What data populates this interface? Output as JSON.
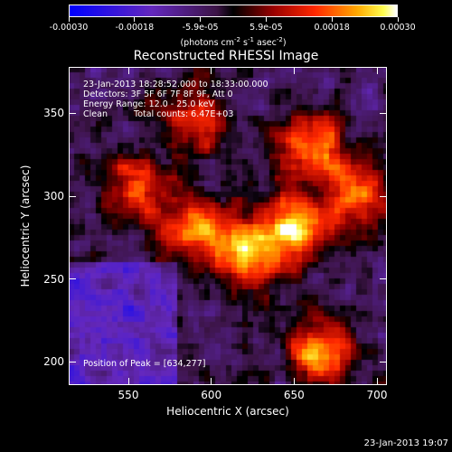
{
  "chart_data": {
    "type": "heatmap",
    "title": "Reconstructed RHESSI Image",
    "xlabel": "Heliocentric X (arcsec)",
    "ylabel": "Heliocentric Y (arcsec)",
    "xlim": [
      514,
      706
    ],
    "ylim": [
      186,
      378
    ],
    "xticks": [
      550,
      600,
      650,
      700
    ],
    "yticks": [
      200,
      250,
      300,
      350
    ],
    "colorbar": {
      "ticks": [
        "-0.00030",
        "-0.00018",
        "-5.9e-05",
        "5.9e-05",
        "0.00018",
        "0.00030"
      ],
      "units_text": "(photons cm",
      "units_exp1": "-2",
      "units_mid": " s",
      "units_exp2": "-1",
      "units_end": " asec",
      "units_exp3": "-2",
      "units_close": ")",
      "range": [
        -0.0003,
        0.0003
      ]
    },
    "annotations": {
      "time_range": "23-Jan-2013 18:28:52.000 to 18:33:00.000",
      "detectors": "Detectors: 3F 5F 6F 7F 8F 9F, Att 0",
      "energy": "Energy Range: 12.0 - 25.0 keV",
      "method": "Clean",
      "counts": "Total counts: 6.47E+03",
      "peak": "Position of Peak = [634,277]"
    },
    "peak_position": [
      634,
      277
    ],
    "bright_sources": [
      {
        "x": 650,
        "y": 280,
        "intensity": 1.0
      },
      {
        "x": 620,
        "y": 265,
        "intensity": 0.8
      },
      {
        "x": 590,
        "y": 280,
        "intensity": 0.75
      },
      {
        "x": 660,
        "y": 330,
        "intensity": 0.8
      },
      {
        "x": 665,
        "y": 205,
        "intensity": 0.85
      },
      {
        "x": 690,
        "y": 300,
        "intensity": 0.7
      },
      {
        "x": 555,
        "y": 305,
        "intensity": 0.6
      },
      {
        "x": 590,
        "y": 345,
        "intensity": 0.55
      }
    ]
  },
  "footer": {
    "timestamp": "23-Jan-2013 19:07"
  }
}
